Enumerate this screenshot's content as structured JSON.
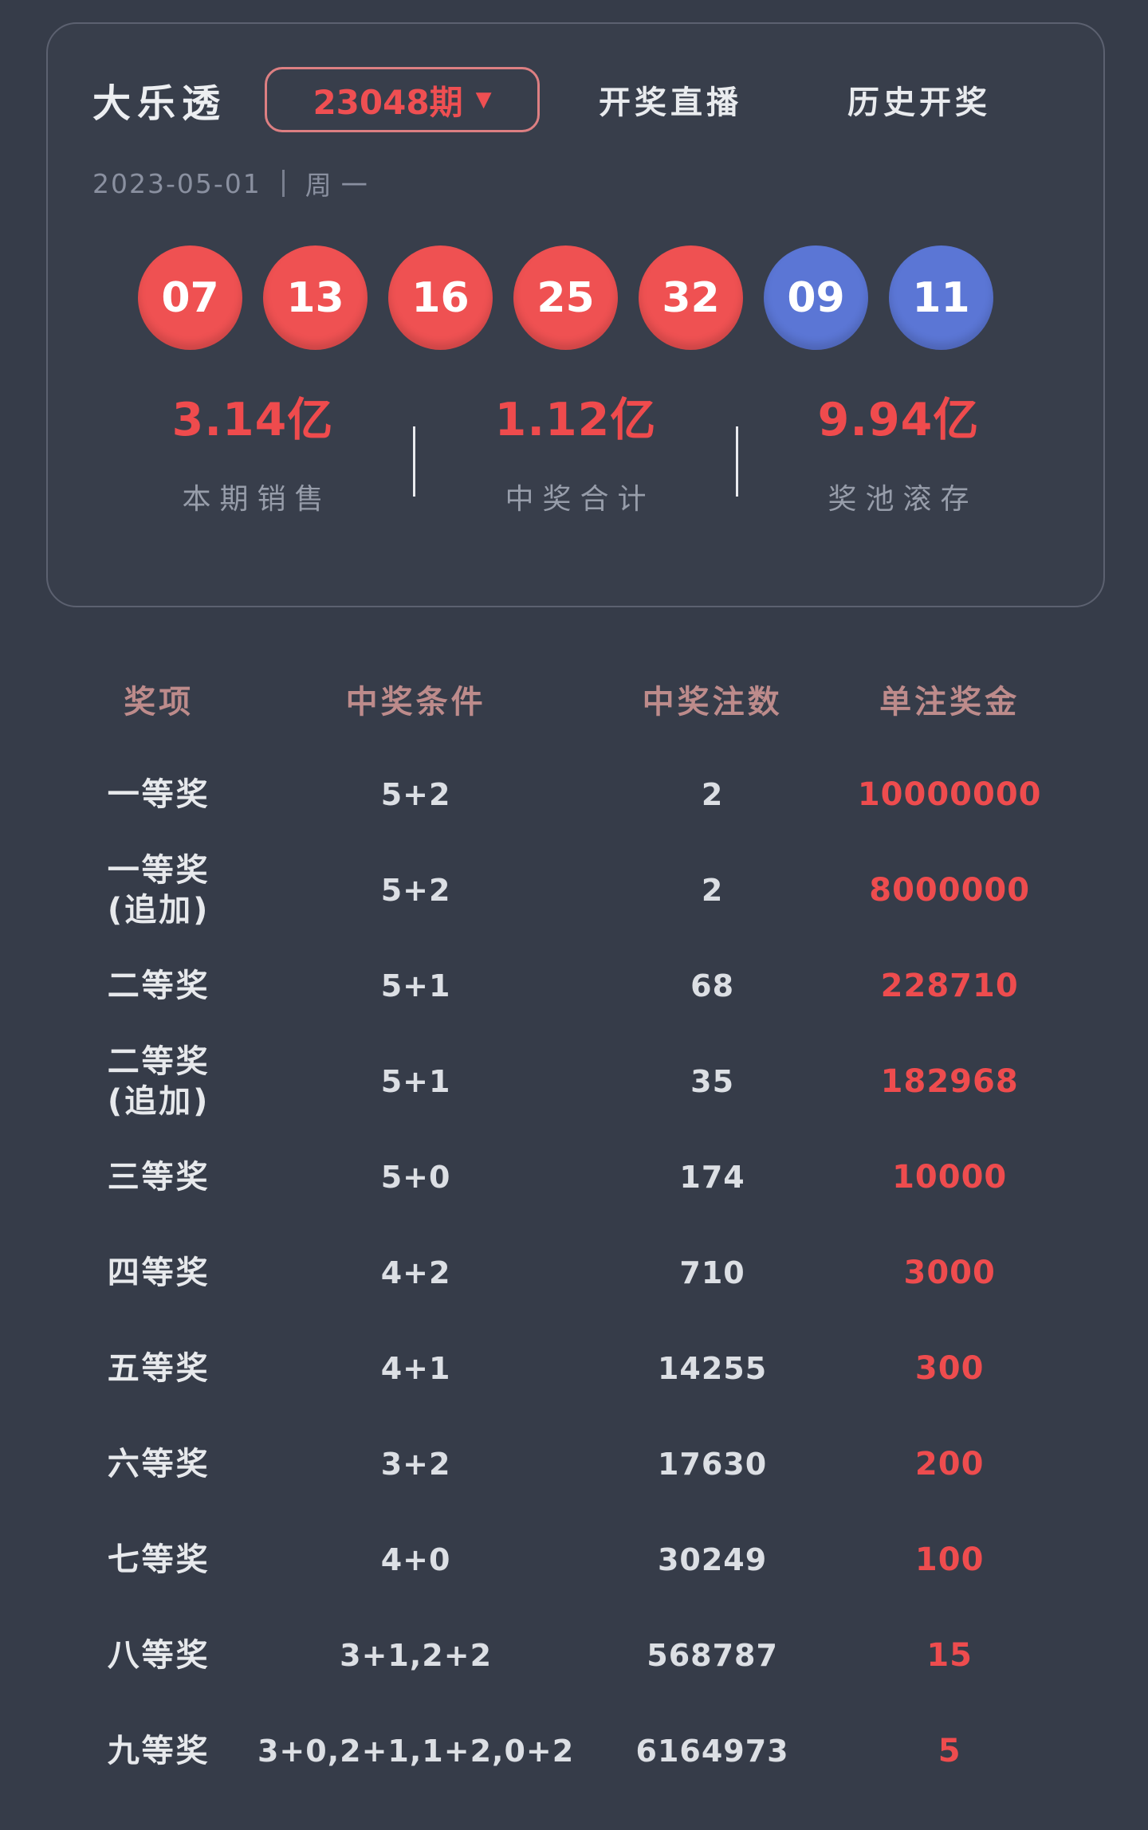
{
  "header": {
    "title": "大乐透",
    "period": "23048期",
    "dropdown_icon": "▼",
    "live_link": "开奖直播",
    "history_link": "历史开奖",
    "date": "2023-05-01",
    "weekday": "周一"
  },
  "balls": {
    "front": [
      "07",
      "13",
      "16",
      "25",
      "32"
    ],
    "back": [
      "09",
      "11"
    ]
  },
  "stats": [
    {
      "value": "3.14亿",
      "label": "本期销售"
    },
    {
      "value": "1.12亿",
      "label": "中奖合计"
    },
    {
      "value": "9.94亿",
      "label": "奖池滚存"
    }
  ],
  "table": {
    "headers": [
      "奖项",
      "中奖条件",
      "中奖注数",
      "单注奖金"
    ],
    "rows": [
      {
        "prize": "一等奖",
        "condition": "5+2",
        "count": "2",
        "amount": "10000000"
      },
      {
        "prize": "一等奖(追加)",
        "condition": "5+2",
        "count": "2",
        "amount": "8000000"
      },
      {
        "prize": "二等奖",
        "condition": "5+1",
        "count": "68",
        "amount": "228710"
      },
      {
        "prize": "二等奖(追加)",
        "condition": "5+1",
        "count": "35",
        "amount": "182968"
      },
      {
        "prize": "三等奖",
        "condition": "5+0",
        "count": "174",
        "amount": "10000"
      },
      {
        "prize": "四等奖",
        "condition": "4+2",
        "count": "710",
        "amount": "3000"
      },
      {
        "prize": "五等奖",
        "condition": "4+1",
        "count": "14255",
        "amount": "300"
      },
      {
        "prize": "六等奖",
        "condition": "3+2",
        "count": "17630",
        "amount": "200"
      },
      {
        "prize": "七等奖",
        "condition": "4+0",
        "count": "30249",
        "amount": "100"
      },
      {
        "prize": "八等奖",
        "condition": "3+1,2+2",
        "count": "568787",
        "amount": "15"
      },
      {
        "prize": "九等奖",
        "condition": "3+0,2+1,1+2,0+2",
        "count": "6164973",
        "amount": "5"
      }
    ]
  },
  "colors": {
    "page_bg": "#363c49",
    "card_bg": "#383e4b",
    "card_border": "#5c6170",
    "accent_red": "#ef4f52",
    "front_ball": "#ef5152",
    "back_ball": "#5b76d5",
    "table_header": "#bd8b8b",
    "muted_text": "#8a90a0"
  }
}
